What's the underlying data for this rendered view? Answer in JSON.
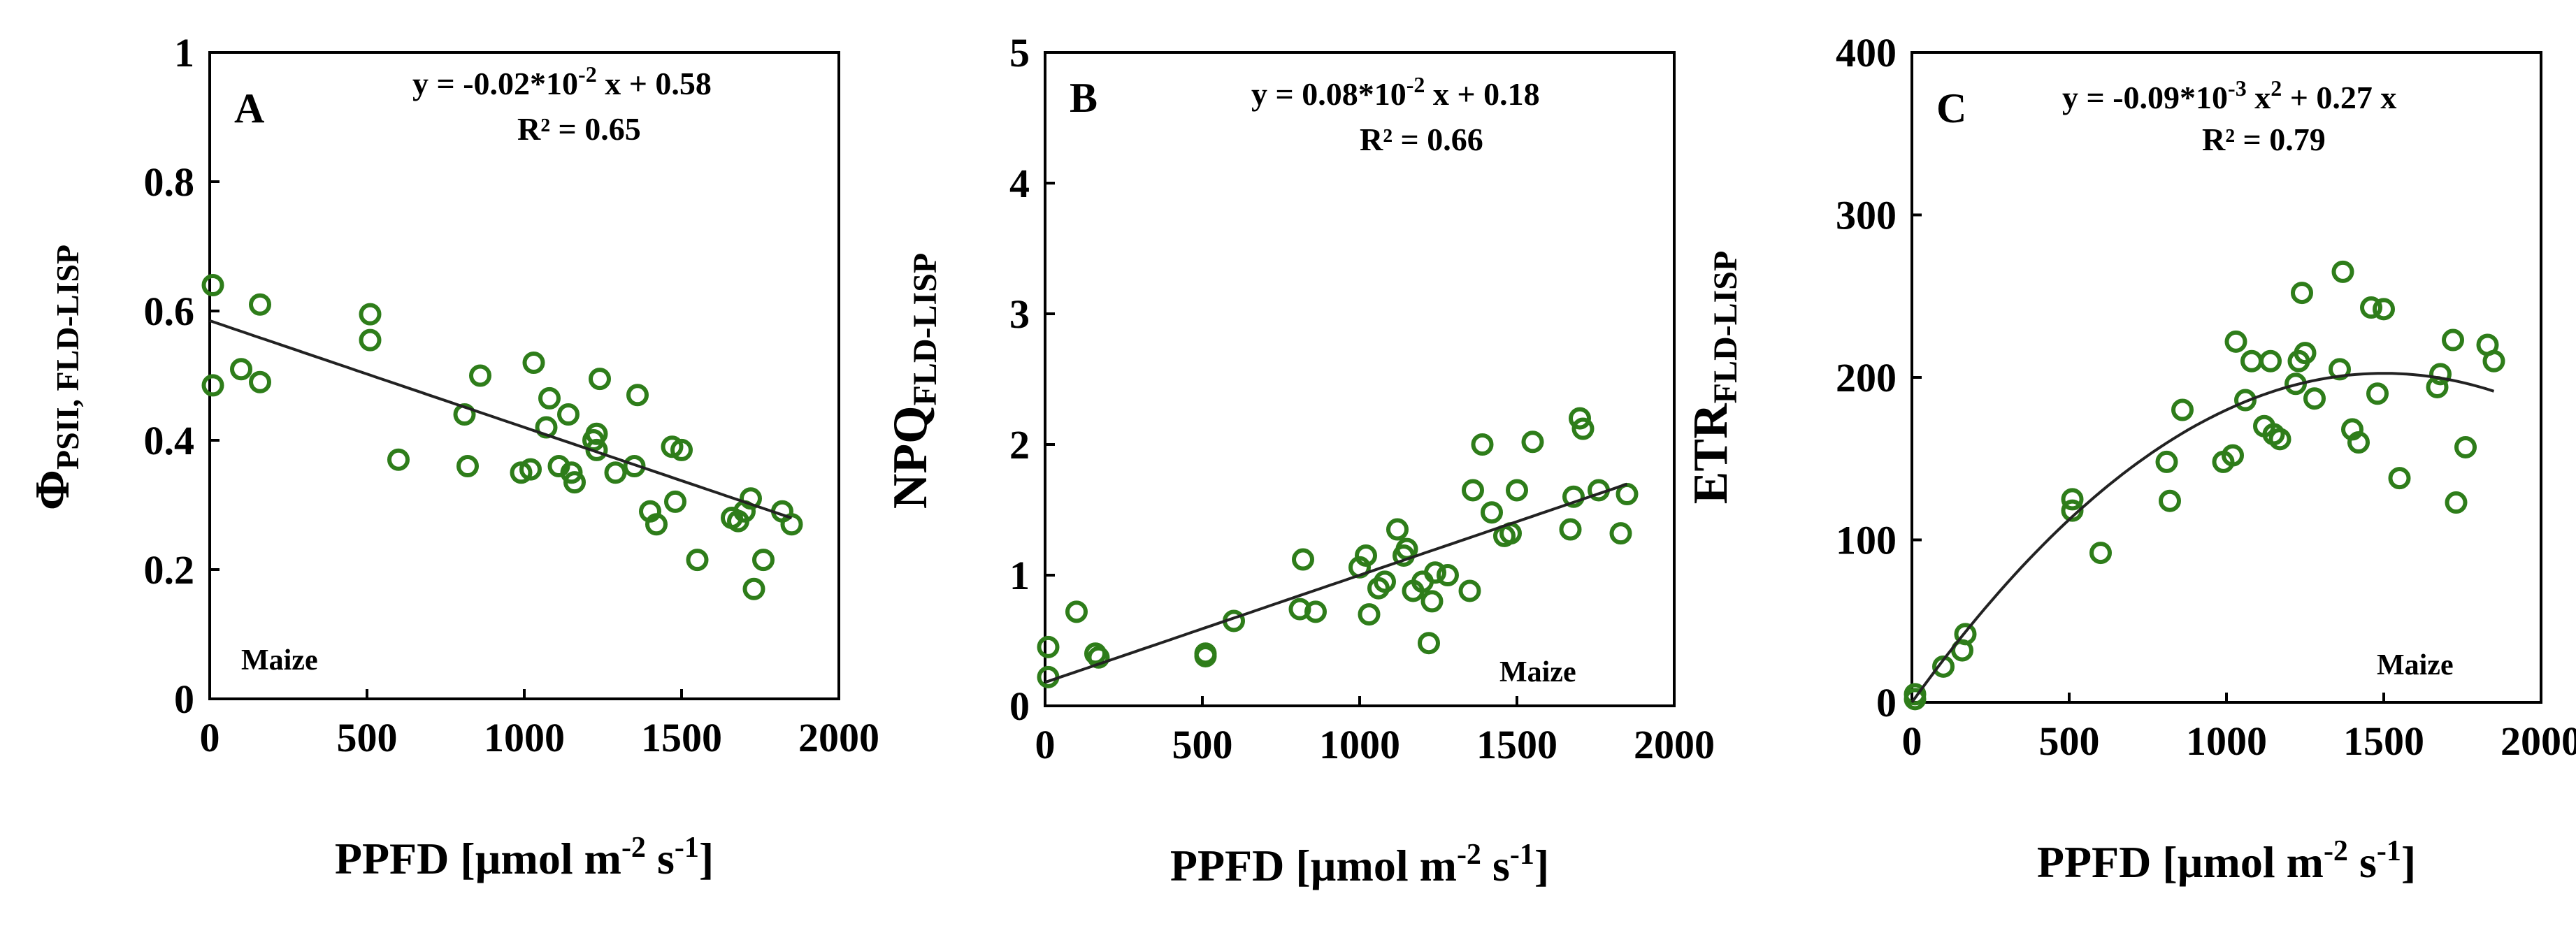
{
  "colors": {
    "points": "#2e7d1a",
    "fit_line": "#222222"
  },
  "chart_data": [
    {
      "type": "scatter",
      "panel": "A",
      "ylabel": "Φ",
      "ylabel_sub": "PSII, FLD-LISP",
      "xlabel": "PPFD [µmol m",
      "xlabel_exp1": "-2",
      "xlabel_mid": " s",
      "xlabel_exp2": "-1",
      "xlabel_end": "]",
      "xlim": [
        0,
        2000
      ],
      "ylim": [
        0,
        1
      ],
      "xticks": [
        0,
        500,
        1000,
        1500,
        2000
      ],
      "yticks": [
        0,
        0.2,
        0.4,
        0.6,
        0.8,
        1
      ],
      "ytick_labels": [
        "0",
        "0.2",
        "0.4",
        "0.6",
        "0.8",
        "1"
      ],
      "equation": "y = -0.02*10",
      "equation_exp": "-2",
      "equation_rest": " x + 0.58",
      "r2": "R² = 0.65",
      "crop": "Maize",
      "fit": {
        "kind": "linear",
        "a": -0.000165,
        "b": 0.585,
        "x_range": [
          0,
          1850
        ]
      },
      "points": [
        [
          10,
          0.64
        ],
        [
          10,
          0.485
        ],
        [
          100,
          0.51
        ],
        [
          160,
          0.61
        ],
        [
          160,
          0.49
        ],
        [
          510,
          0.595
        ],
        [
          510,
          0.555
        ],
        [
          600,
          0.37
        ],
        [
          810,
          0.44
        ],
        [
          820,
          0.36
        ],
        [
          860,
          0.5
        ],
        [
          990,
          0.35
        ],
        [
          1020,
          0.355
        ],
        [
          1030,
          0.52
        ],
        [
          1070,
          0.42
        ],
        [
          1080,
          0.465
        ],
        [
          1110,
          0.36
        ],
        [
          1140,
          0.44
        ],
        [
          1150,
          0.35
        ],
        [
          1160,
          0.335
        ],
        [
          1220,
          0.4
        ],
        [
          1230,
          0.41
        ],
        [
          1230,
          0.385
        ],
        [
          1240,
          0.495
        ],
        [
          1290,
          0.35
        ],
        [
          1350,
          0.36
        ],
        [
          1360,
          0.47
        ],
        [
          1400,
          0.29
        ],
        [
          1420,
          0.27
        ],
        [
          1470,
          0.39
        ],
        [
          1480,
          0.305
        ],
        [
          1500,
          0.385
        ],
        [
          1550,
          0.215
        ],
        [
          1660,
          0.28
        ],
        [
          1680,
          0.275
        ],
        [
          1700,
          0.29
        ],
        [
          1720,
          0.31
        ],
        [
          1730,
          0.17
        ],
        [
          1760,
          0.215
        ],
        [
          1820,
          0.29
        ],
        [
          1850,
          0.27
        ]
      ]
    },
    {
      "type": "scatter",
      "panel": "B",
      "ylabel": "NPQ",
      "ylabel_sub": "FLD-LISP",
      "xlabel": "PPFD [µmol m",
      "xlabel_exp1": "-2",
      "xlabel_mid": " s",
      "xlabel_exp2": "-1",
      "xlabel_end": "]",
      "xlim": [
        0,
        2000
      ],
      "ylim": [
        0,
        5
      ],
      "xticks": [
        0,
        500,
        1000,
        1500,
        2000
      ],
      "yticks": [
        0,
        1,
        2,
        3,
        4,
        5
      ],
      "ytick_labels": [
        "0",
        "1",
        "2",
        "3",
        "4",
        "5"
      ],
      "equation": "y = 0.08*10",
      "equation_exp": "-2",
      "equation_rest": " x + 0.18",
      "r2": "R² = 0.66",
      "crop": "Maize",
      "fit": {
        "kind": "linear",
        "a": 0.00082,
        "b": 0.18,
        "x_range": [
          0,
          1850
        ]
      },
      "points": [
        [
          10,
          0.45
        ],
        [
          10,
          0.22
        ],
        [
          100,
          0.72
        ],
        [
          160,
          0.4
        ],
        [
          170,
          0.37
        ],
        [
          510,
          0.4
        ],
        [
          510,
          0.38
        ],
        [
          600,
          0.65
        ],
        [
          810,
          0.74
        ],
        [
          820,
          1.12
        ],
        [
          860,
          0.72
        ],
        [
          1000,
          1.06
        ],
        [
          1020,
          1.15
        ],
        [
          1030,
          0.7
        ],
        [
          1060,
          0.9
        ],
        [
          1080,
          0.95
        ],
        [
          1120,
          1.35
        ],
        [
          1140,
          1.15
        ],
        [
          1150,
          1.2
        ],
        [
          1170,
          0.88
        ],
        [
          1200,
          0.95
        ],
        [
          1220,
          0.48
        ],
        [
          1230,
          0.8
        ],
        [
          1240,
          1.02
        ],
        [
          1280,
          1.0
        ],
        [
          1350,
          0.88
        ],
        [
          1360,
          1.65
        ],
        [
          1390,
          2.0
        ],
        [
          1420,
          1.48
        ],
        [
          1460,
          1.3
        ],
        [
          1480,
          1.32
        ],
        [
          1500,
          1.65
        ],
        [
          1550,
          2.02
        ],
        [
          1670,
          1.35
        ],
        [
          1680,
          1.6
        ],
        [
          1700,
          2.2
        ],
        [
          1710,
          2.12
        ],
        [
          1760,
          1.65
        ],
        [
          1830,
          1.32
        ],
        [
          1850,
          1.62
        ]
      ]
    },
    {
      "type": "scatter",
      "panel": "C",
      "ylabel": "ETR",
      "ylabel_sub": "FLD-LISP",
      "xlabel": "PPFD [µmol m",
      "xlabel_exp1": "-2",
      "xlabel_mid": " s",
      "xlabel_exp2": "-1",
      "xlabel_end": "]",
      "xlim": [
        0,
        2000
      ],
      "ylim": [
        0,
        400
      ],
      "xticks": [
        0,
        500,
        1000,
        1500,
        2000
      ],
      "yticks": [
        0,
        100,
        200,
        300,
        400
      ],
      "ytick_labels": [
        "0",
        "100",
        "200",
        "300",
        "400"
      ],
      "equation": "y = -0.09*10",
      "equation_exp": "-3",
      "equation_rest1": " x",
      "equation_exp2": "2",
      "equation_rest2": " + 0.27 x",
      "r2": "R² = 0.79",
      "crop": "Maize",
      "fit": {
        "kind": "quadratic",
        "a": -9e-05,
        "b": 0.27,
        "x_range": [
          0,
          1850
        ]
      },
      "points": [
        [
          10,
          5
        ],
        [
          10,
          2
        ],
        [
          100,
          22
        ],
        [
          160,
          32
        ],
        [
          170,
          42
        ],
        [
          510,
          125
        ],
        [
          510,
          118
        ],
        [
          600,
          92
        ],
        [
          810,
          148
        ],
        [
          820,
          124
        ],
        [
          860,
          180
        ],
        [
          990,
          148
        ],
        [
          1020,
          152
        ],
        [
          1030,
          222
        ],
        [
          1060,
          186
        ],
        [
          1080,
          210
        ],
        [
          1120,
          170
        ],
        [
          1140,
          210
        ],
        [
          1150,
          165
        ],
        [
          1170,
          162
        ],
        [
          1220,
          196
        ],
        [
          1230,
          210
        ],
        [
          1240,
          252
        ],
        [
          1250,
          215
        ],
        [
          1280,
          187
        ],
        [
          1360,
          205
        ],
        [
          1370,
          265
        ],
        [
          1400,
          168
        ],
        [
          1420,
          160
        ],
        [
          1460,
          243
        ],
        [
          1480,
          190
        ],
        [
          1500,
          242
        ],
        [
          1550,
          138
        ],
        [
          1670,
          194
        ],
        [
          1680,
          202
        ],
        [
          1720,
          223
        ],
        [
          1730,
          123
        ],
        [
          1760,
          157
        ],
        [
          1830,
          220
        ],
        [
          1850,
          210
        ]
      ]
    }
  ]
}
